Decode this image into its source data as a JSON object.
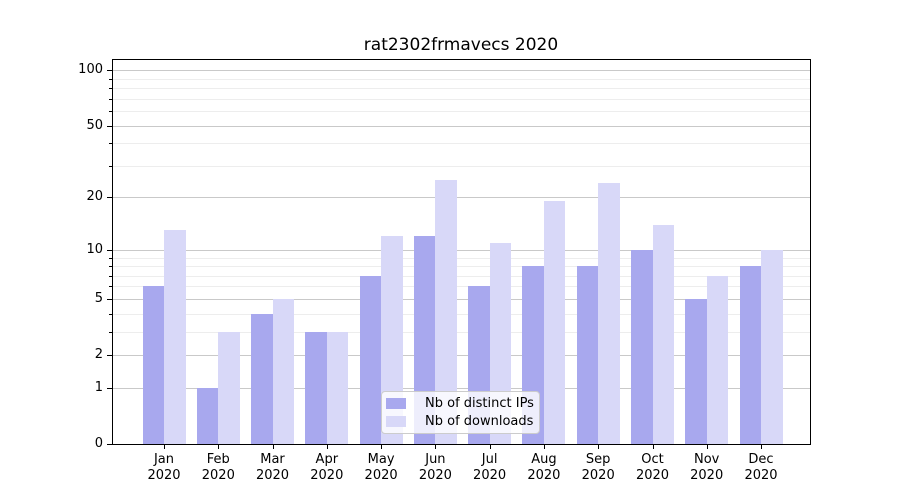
{
  "figure": {
    "title": "rat2302frmavecs 2020"
  },
  "chart_data": {
    "type": "bar",
    "title": "rat2302frmavecs 2020",
    "scale": "log1p",
    "ylim": [
      0,
      115
    ],
    "grid": true,
    "legend_position": "lower-center",
    "yticks_major": [
      0,
      1,
      2,
      5,
      10,
      20,
      50,
      100
    ],
    "ytick_labels": [
      "0",
      "1",
      "2",
      "5",
      "10",
      "20",
      "50",
      "100"
    ],
    "yticks_minor": [
      3,
      4,
      6,
      7,
      8,
      9,
      30,
      40,
      60,
      70,
      80,
      90
    ],
    "categories": [
      {
        "line1": "Jan",
        "line2": "2020"
      },
      {
        "line1": "Feb",
        "line2": "2020"
      },
      {
        "line1": "Mar",
        "line2": "2020"
      },
      {
        "line1": "Apr",
        "line2": "2020"
      },
      {
        "line1": "May",
        "line2": "2020"
      },
      {
        "line1": "Jun",
        "line2": "2020"
      },
      {
        "line1": "Jul",
        "line2": "2020"
      },
      {
        "line1": "Aug",
        "line2": "2020"
      },
      {
        "line1": "Sep",
        "line2": "2020"
      },
      {
        "line1": "Oct",
        "line2": "2020"
      },
      {
        "line1": "Nov",
        "line2": "2020"
      },
      {
        "line1": "Dec",
        "line2": "2020"
      }
    ],
    "series": [
      {
        "name": "Nb of distinct IPs",
        "color": "#a8a8ee",
        "values": [
          6,
          1,
          4,
          3,
          7,
          12,
          6,
          8,
          8,
          10,
          5,
          8
        ]
      },
      {
        "name": "Nb of downloads",
        "color": "#d8d8f8",
        "values": [
          13,
          3,
          5,
          3,
          12,
          25,
          11,
          19,
          24,
          14,
          7,
          10
        ]
      }
    ]
  }
}
